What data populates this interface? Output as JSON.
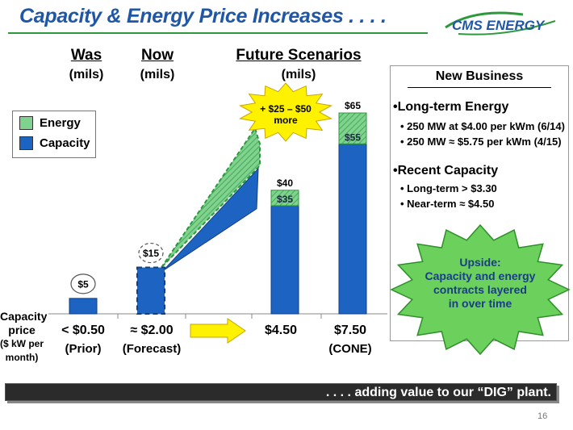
{
  "header": {
    "title": "Capacity & Energy Price Increases . . . .",
    "logo_text": "CMS ENERGY"
  },
  "columns": {
    "was": {
      "label": "Was",
      "unit": "(mils)"
    },
    "now": {
      "label": "Now",
      "unit": "(mils)"
    },
    "future": {
      "label": "Future Scenarios",
      "unit": "(mils)"
    }
  },
  "legend": {
    "energy": "Energy",
    "capacity": "Capacity"
  },
  "callout": "+ $25 – $50 more",
  "capacity_price": {
    "label_line1": "Capacity",
    "label_line2": "price",
    "label_line3": "($ kW per",
    "label_line4": "month)",
    "values": [
      "< $0.50",
      "≈ $2.00",
      "$4.50",
      "$7.50"
    ],
    "notes": [
      "(Prior)",
      "(Forecast)",
      "",
      "(CONE)"
    ]
  },
  "new_business": {
    "title": "New Business",
    "section1": "•Long-term Energy",
    "items1": [
      "• 250 MW at $4.00 per kWm (6/14)",
      "• 250 MW ≈ $5.75 per kWm (4/15)"
    ],
    "section2": "•Recent Capacity",
    "items2": [
      "• Long-term > $3.30",
      "• Near-term ≈ $4.50"
    ]
  },
  "upside": {
    "line1": "Upside:",
    "line2": "Capacity and energy",
    "line3": "contracts layered",
    "line4": "in over time"
  },
  "footer": ". . . . adding value to our “DIG” plant.",
  "page_number": "16",
  "colors": {
    "title_blue": "#1f57a6",
    "capacity_blue": "#1c63c2",
    "energy_green": "#7fd38f",
    "accent_green": "#2c9a3c",
    "burst_yellow": "#fff200",
    "upside_green": "#6bd05c"
  },
  "chart_data": {
    "type": "bar",
    "categories": [
      "Was",
      "Now",
      "Future 1",
      "Future 2"
    ],
    "series": [
      {
        "name": "Capacity",
        "values": [
          5,
          15,
          35,
          55
        ]
      },
      {
        "name": "Energy",
        "values": [
          0,
          0,
          5,
          10
        ]
      }
    ],
    "total_labels": [
      "$5",
      "$15",
      "$40",
      "$65"
    ],
    "capacity_labels": [
      "",
      "",
      "$35",
      "$55"
    ],
    "ylim": [
      0,
      65
    ]
  }
}
